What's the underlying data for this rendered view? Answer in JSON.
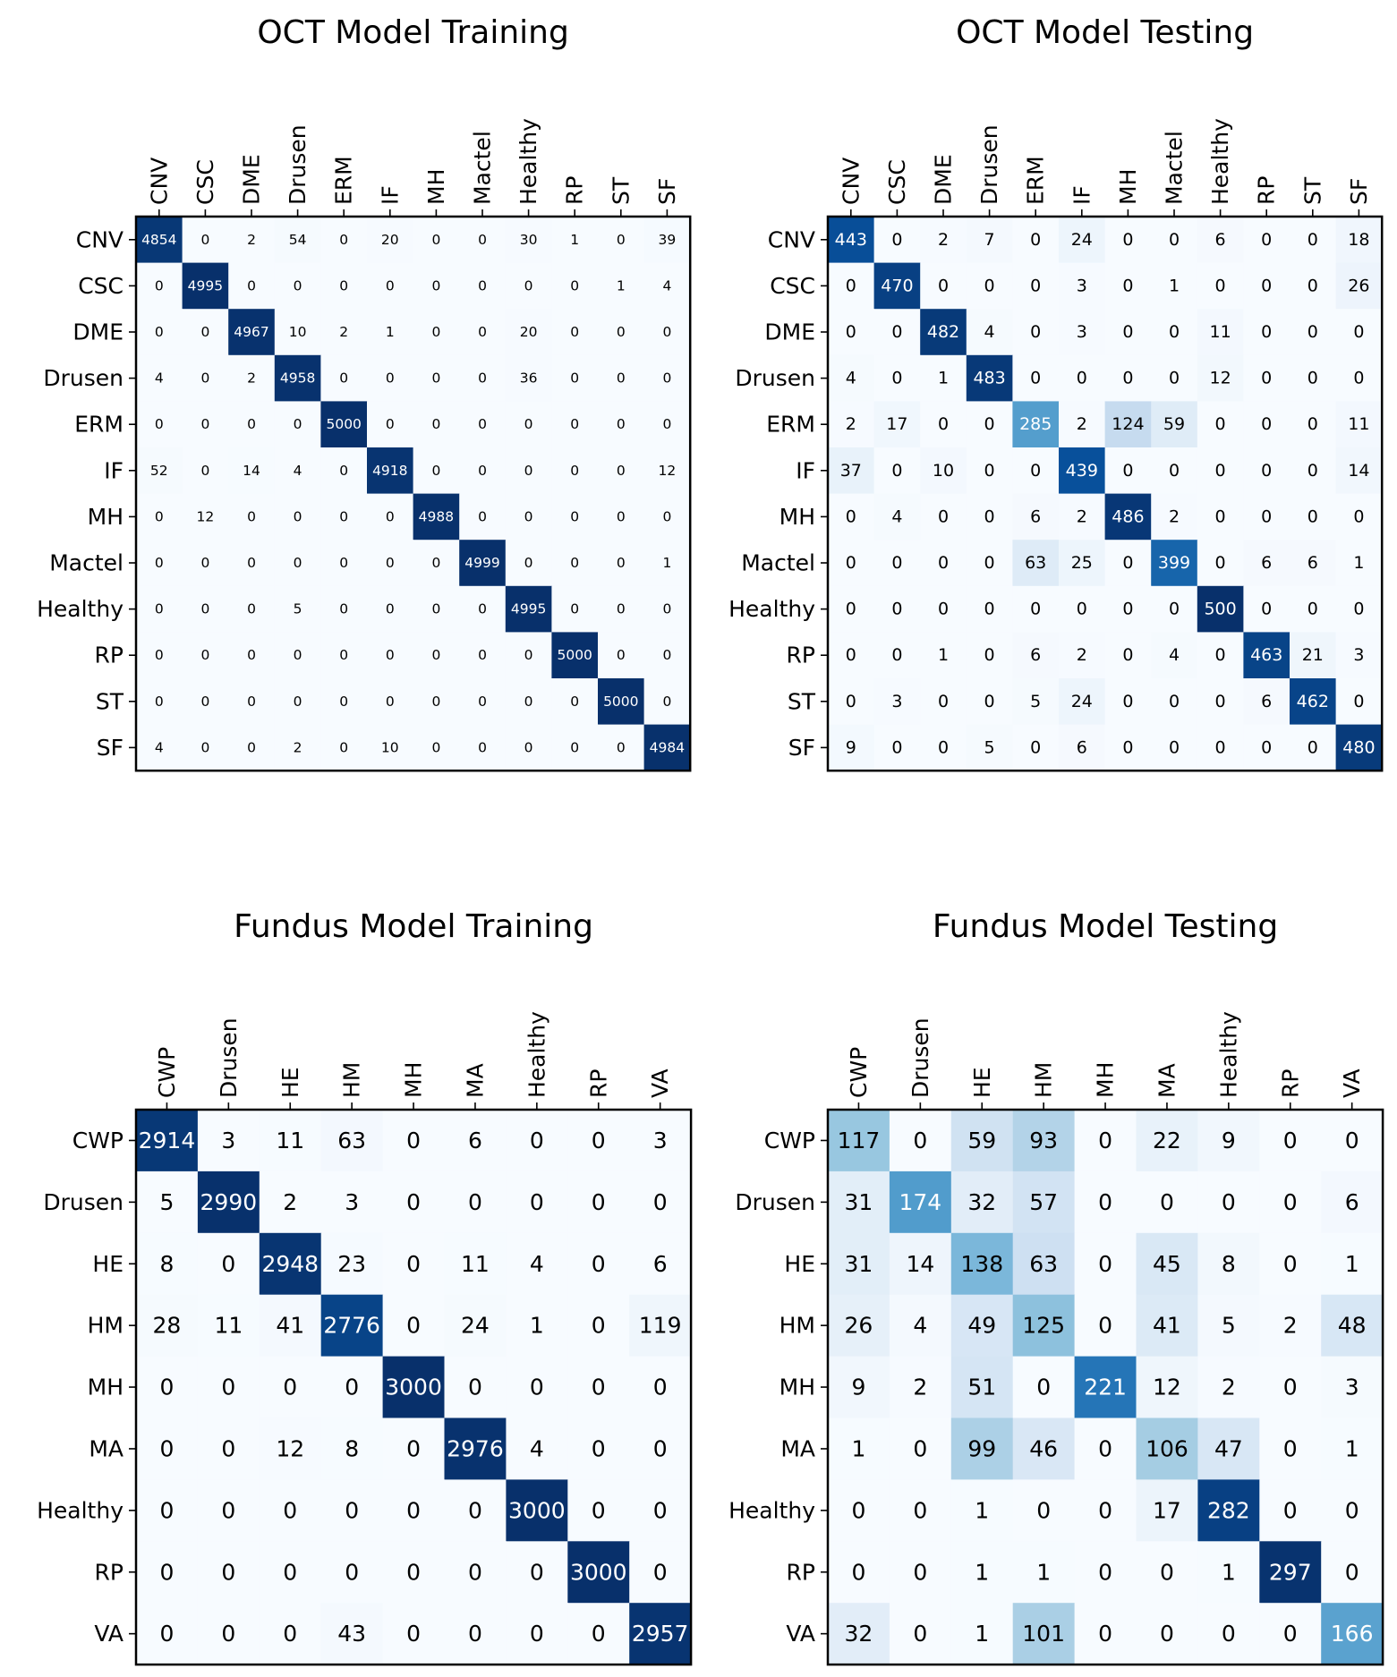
{
  "chart_data": [
    {
      "type": "heatmap",
      "title": "OCT Model Training",
      "columns": [
        "CNV",
        "CSC",
        "DME",
        "Drusen",
        "ERM",
        "IF",
        "MH",
        "Mactel",
        "Healthy",
        "RP",
        "ST",
        "SF"
      ],
      "rows": [
        "CNV",
        "CSC",
        "DME",
        "Drusen",
        "ERM",
        "IF",
        "MH",
        "Mactel",
        "Healthy",
        "RP",
        "ST",
        "SF"
      ],
      "values": [
        [
          4854,
          0,
          2,
          54,
          0,
          20,
          0,
          0,
          30,
          1,
          0,
          39
        ],
        [
          0,
          4995,
          0,
          0,
          0,
          0,
          0,
          0,
          0,
          0,
          1,
          4
        ],
        [
          0,
          0,
          4967,
          10,
          2,
          1,
          0,
          0,
          20,
          0,
          0,
          0
        ],
        [
          4,
          0,
          2,
          4958,
          0,
          0,
          0,
          0,
          36,
          0,
          0,
          0
        ],
        [
          0,
          0,
          0,
          0,
          5000,
          0,
          0,
          0,
          0,
          0,
          0,
          0
        ],
        [
          52,
          0,
          14,
          4,
          0,
          4918,
          0,
          0,
          0,
          0,
          0,
          12
        ],
        [
          0,
          12,
          0,
          0,
          0,
          0,
          4988,
          0,
          0,
          0,
          0,
          0
        ],
        [
          0,
          0,
          0,
          0,
          0,
          0,
          0,
          4999,
          0,
          0,
          0,
          1
        ],
        [
          0,
          0,
          0,
          5,
          0,
          0,
          0,
          0,
          4995,
          0,
          0,
          0
        ],
        [
          0,
          0,
          0,
          0,
          0,
          0,
          0,
          0,
          0,
          5000,
          0,
          0
        ],
        [
          0,
          0,
          0,
          0,
          0,
          0,
          0,
          0,
          0,
          0,
          5000,
          0
        ],
        [
          4,
          0,
          0,
          2,
          0,
          10,
          0,
          0,
          0,
          0,
          0,
          4984
        ]
      ],
      "colormap": "Blues",
      "color_max": 5000,
      "grid": false
    },
    {
      "type": "heatmap",
      "title": "OCT Model Testing",
      "columns": [
        "CNV",
        "CSC",
        "DME",
        "Drusen",
        "ERM",
        "IF",
        "MH",
        "Mactel",
        "Healthy",
        "RP",
        "ST",
        "SF"
      ],
      "rows": [
        "CNV",
        "CSC",
        "DME",
        "Drusen",
        "ERM",
        "IF",
        "MH",
        "Mactel",
        "Healthy",
        "RP",
        "ST",
        "SF"
      ],
      "values": [
        [
          443,
          0,
          2,
          7,
          0,
          24,
          0,
          0,
          6,
          0,
          0,
          18
        ],
        [
          0,
          470,
          0,
          0,
          0,
          3,
          0,
          1,
          0,
          0,
          0,
          26
        ],
        [
          0,
          0,
          482,
          4,
          0,
          3,
          0,
          0,
          11,
          0,
          0,
          0
        ],
        [
          4,
          0,
          1,
          483,
          0,
          0,
          0,
          0,
          12,
          0,
          0,
          0
        ],
        [
          2,
          17,
          0,
          0,
          285,
          2,
          124,
          59,
          0,
          0,
          0,
          11
        ],
        [
          37,
          0,
          10,
          0,
          0,
          439,
          0,
          0,
          0,
          0,
          0,
          14
        ],
        [
          0,
          4,
          0,
          0,
          6,
          2,
          486,
          2,
          0,
          0,
          0,
          0
        ],
        [
          0,
          0,
          0,
          0,
          63,
          25,
          0,
          399,
          0,
          6,
          6,
          1
        ],
        [
          0,
          0,
          0,
          0,
          0,
          0,
          0,
          0,
          500,
          0,
          0,
          0
        ],
        [
          0,
          0,
          1,
          0,
          6,
          2,
          0,
          4,
          0,
          463,
          21,
          3
        ],
        [
          0,
          3,
          0,
          0,
          5,
          24,
          0,
          0,
          0,
          6,
          462,
          0
        ],
        [
          9,
          0,
          0,
          5,
          0,
          6,
          0,
          0,
          0,
          0,
          0,
          480
        ]
      ],
      "colormap": "Blues",
      "color_max": 500,
      "grid": false
    },
    {
      "type": "heatmap",
      "title": "Fundus Model Training",
      "columns": [
        "CWP",
        "Drusen",
        "HE",
        "HM",
        "MH",
        "MA",
        "Healthy",
        "RP",
        "VA"
      ],
      "rows": [
        "CWP",
        "Drusen",
        "HE",
        "HM",
        "MH",
        "MA",
        "Healthy",
        "RP",
        "VA"
      ],
      "values": [
        [
          2914,
          3,
          11,
          63,
          0,
          6,
          0,
          0,
          3
        ],
        [
          5,
          2990,
          2,
          3,
          0,
          0,
          0,
          0,
          0
        ],
        [
          8,
          0,
          2948,
          23,
          0,
          11,
          4,
          0,
          6
        ],
        [
          28,
          11,
          41,
          2776,
          0,
          24,
          1,
          0,
          119
        ],
        [
          0,
          0,
          0,
          0,
          3000,
          0,
          0,
          0,
          0
        ],
        [
          0,
          0,
          12,
          8,
          0,
          2976,
          4,
          0,
          0
        ],
        [
          0,
          0,
          0,
          0,
          0,
          0,
          3000,
          0,
          0
        ],
        [
          0,
          0,
          0,
          0,
          0,
          0,
          0,
          3000,
          0
        ],
        [
          0,
          0,
          0,
          43,
          0,
          0,
          0,
          0,
          2957
        ]
      ],
      "colormap": "Blues",
      "color_max": 3000,
      "grid": false
    },
    {
      "type": "heatmap",
      "title": "Fundus Model Testing",
      "columns": [
        "CWP",
        "Drusen",
        "HE",
        "HM",
        "MH",
        "MA",
        "Healthy",
        "RP",
        "VA"
      ],
      "rows": [
        "CWP",
        "Drusen",
        "HE",
        "HM",
        "MH",
        "MA",
        "Healthy",
        "RP",
        "VA"
      ],
      "values": [
        [
          117,
          0,
          59,
          93,
          0,
          22,
          9,
          0,
          0
        ],
        [
          31,
          174,
          32,
          57,
          0,
          0,
          0,
          0,
          6
        ],
        [
          31,
          14,
          138,
          63,
          0,
          45,
          8,
          0,
          1
        ],
        [
          26,
          4,
          49,
          125,
          0,
          41,
          5,
          2,
          48
        ],
        [
          9,
          2,
          51,
          0,
          221,
          12,
          2,
          0,
          3
        ],
        [
          1,
          0,
          99,
          46,
          0,
          106,
          47,
          0,
          1
        ],
        [
          0,
          0,
          1,
          0,
          0,
          17,
          282,
          0,
          0
        ],
        [
          0,
          0,
          1,
          1,
          0,
          0,
          1,
          297,
          0
        ],
        [
          32,
          0,
          1,
          101,
          0,
          0,
          0,
          0,
          166
        ]
      ],
      "colormap": "Blues",
      "color_max": 300,
      "grid": false
    }
  ]
}
